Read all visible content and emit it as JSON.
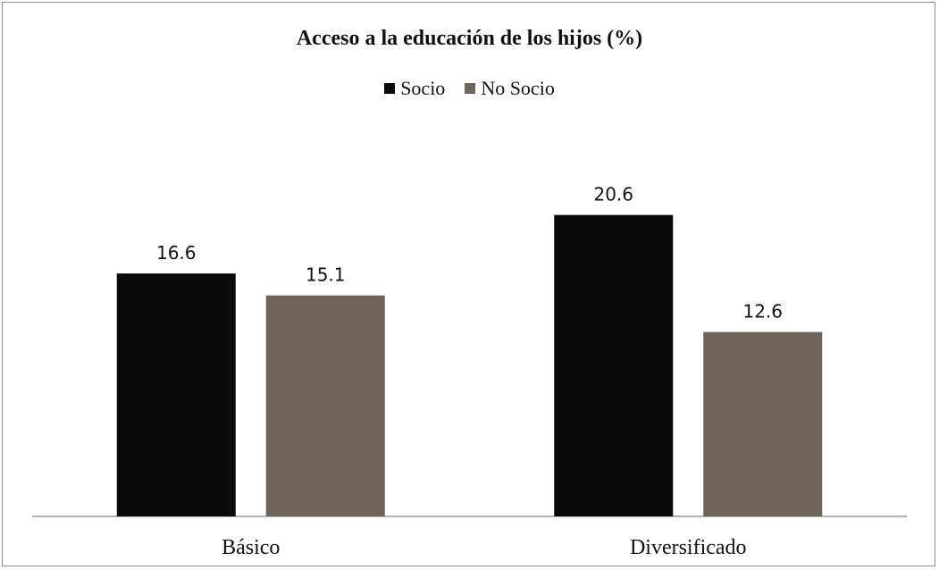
{
  "chart_data": {
    "type": "bar",
    "title": "Acceso a la educación de los hijos (%)",
    "categories": [
      "Básico",
      "Diversificado"
    ],
    "series": [
      {
        "name": "Socio",
        "values": [
          16.6,
          20.6
        ],
        "color": "#0a0a0a",
        "labels": [
          "16.6",
          "20.6"
        ]
      },
      {
        "name": "No Socio",
        "values": [
          15.1,
          12.6
        ],
        "color": "#6e6457",
        "labels": [
          "15.1",
          "12.6"
        ]
      }
    ],
    "ylim": [
      0,
      23.2
    ],
    "legend_position": "top-center",
    "grid": false
  }
}
